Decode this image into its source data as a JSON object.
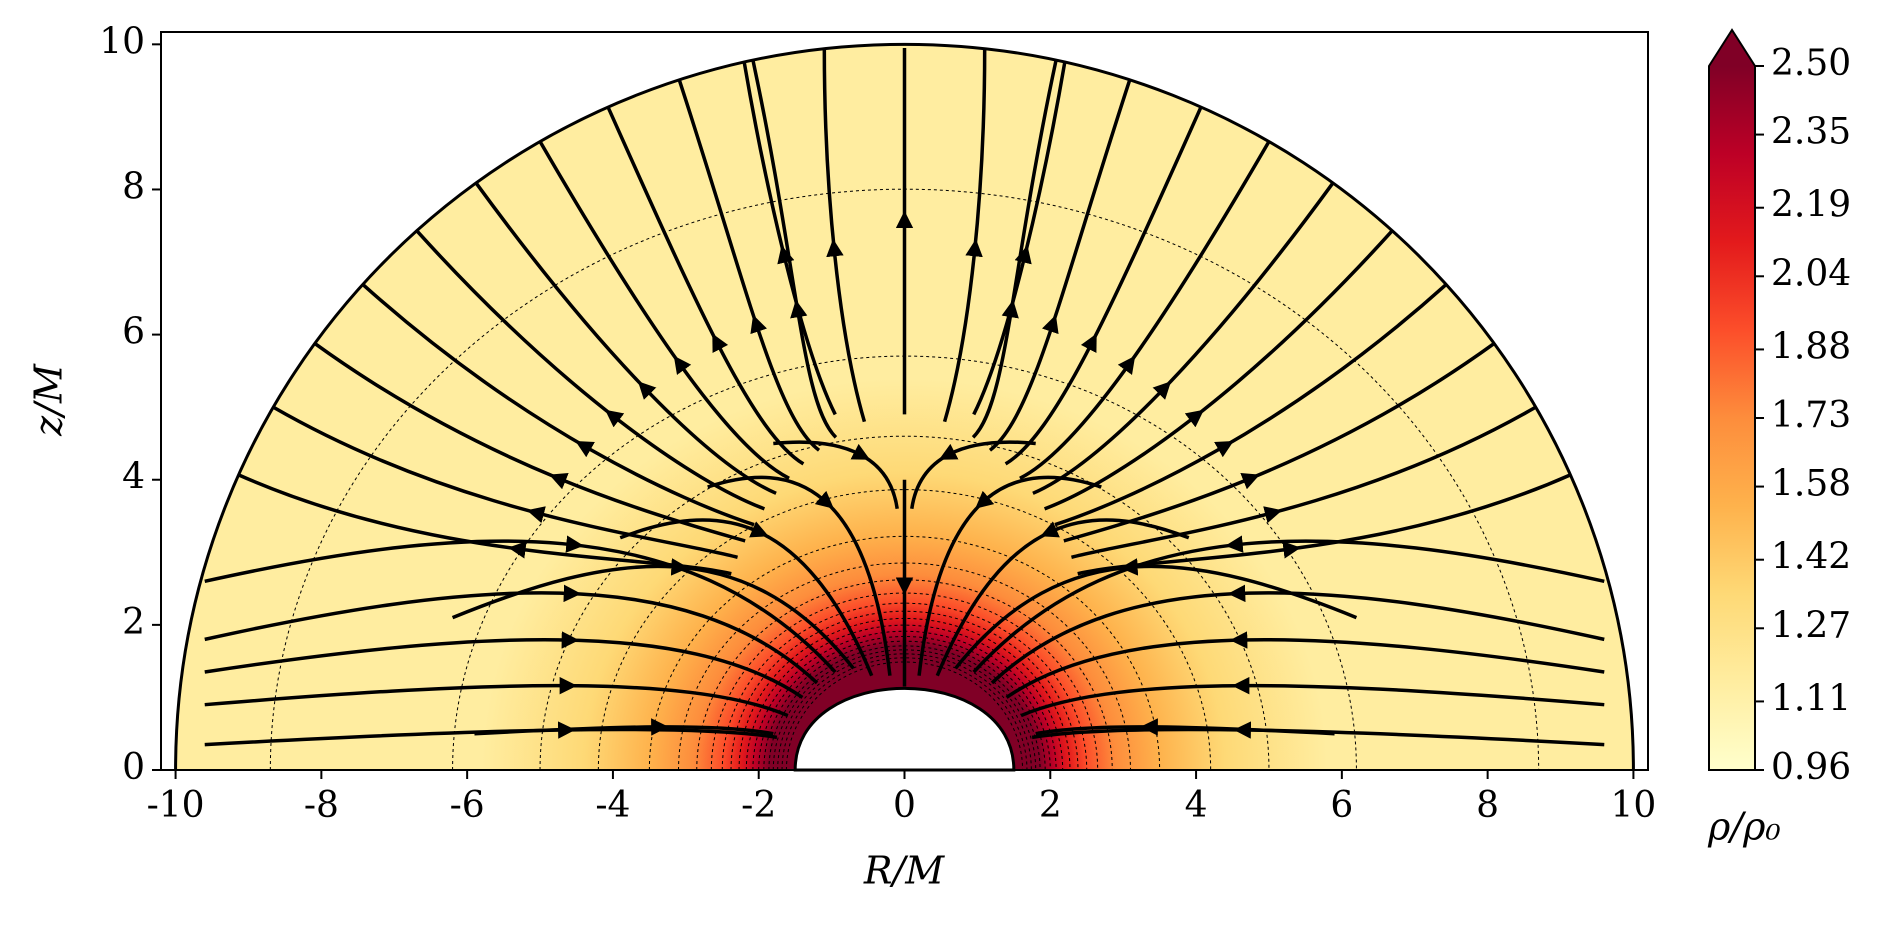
{
  "chart_data": {
    "type": "streamplot",
    "xlabel": "R/M",
    "ylabel": "z/M",
    "xlim": [
      -10.2,
      10.2
    ],
    "ylim": [
      0,
      10.17
    ],
    "xticks": [
      -10,
      -8,
      -6,
      -4,
      -2,
      0,
      2,
      4,
      6,
      8,
      10
    ],
    "yticks": [
      0,
      2,
      4,
      6,
      8,
      10
    ],
    "colorbar": {
      "label": "ρ/ρ₀",
      "lim": [
        0.96,
        2.5
      ],
      "extend": "max",
      "colormap": [
        "#ffffcc",
        "#ffeda0",
        "#fed976",
        "#feb24c",
        "#fd8d3c",
        "#fc4e2a",
        "#e31a1c",
        "#bd0026",
        "#800026"
      ],
      "ticks": [
        0.96,
        1.11,
        1.27,
        1.42,
        1.58,
        1.73,
        1.88,
        2.04,
        2.19,
        2.35,
        {
          "value": 2.5,
          "label": "2.50"
        }
      ]
    }
  }
}
